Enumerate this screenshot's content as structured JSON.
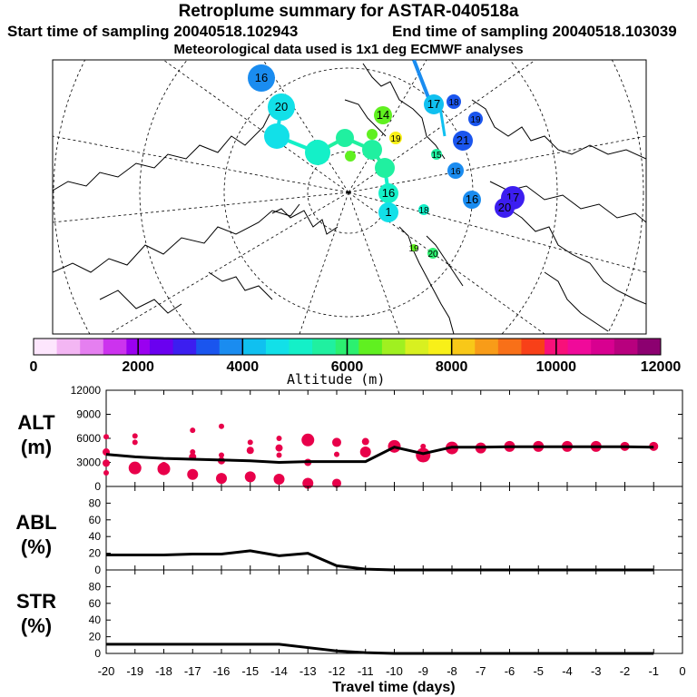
{
  "header": {
    "title": "Retroplume summary for ASTAR-040518a",
    "start_label": "Start time of sampling 20040518.102943",
    "end_label": "End time of sampling 20040518.103039",
    "met_label": "Meteorological data used is 1x1 deg ECMWF analyses"
  },
  "colors": {
    "plume_marker": "#e8004a",
    "line": "#000000"
  },
  "map": {
    "projection": "north polar stereographic",
    "cluster_labels": [
      {
        "text": "16",
        "value": 16
      },
      {
        "text": "17",
        "value": 17
      },
      {
        "text": "18",
        "value": 18
      },
      {
        "text": "19",
        "value": 19
      },
      {
        "text": "20",
        "value": 20
      },
      {
        "text": "14",
        "value": 14
      },
      {
        "text": "21",
        "value": 21
      },
      {
        "text": "19",
        "value": 19
      },
      {
        "text": "16",
        "value": 16
      },
      {
        "text": "15",
        "value": 15
      },
      {
        "text": "16",
        "value": 16
      },
      {
        "text": "17",
        "value": 17
      },
      {
        "text": "20",
        "value": 20
      },
      {
        "text": "16",
        "value": 16
      },
      {
        "text": "18",
        "value": 18
      },
      {
        "text": "1",
        "value": 1
      },
      {
        "text": "19",
        "value": 19
      },
      {
        "text": "20",
        "value": 20
      }
    ]
  },
  "colorbar": {
    "label": "Altitude (m)",
    "ticks": [
      "0",
      "2000",
      "4000",
      "6000",
      "8000",
      "10000",
      "12000"
    ],
    "colors": [
      "#fde6fd",
      "#f3b6f3",
      "#e57ff0",
      "#cc33ee",
      "#9a00f0",
      "#6a00f0",
      "#3c1ef0",
      "#1a55ee",
      "#1a8cf0",
      "#10c0f0",
      "#12e0e8",
      "#14f0c8",
      "#20f0a0",
      "#2cf070",
      "#60f020",
      "#a0f020",
      "#d8f020",
      "#f8f018",
      "#f8c818",
      "#f89c18",
      "#f87018",
      "#f84018",
      "#f8107a",
      "#f00a9a",
      "#d80090",
      "#b8007e",
      "#8c0070"
    ]
  },
  "chart_data": [
    {
      "type": "line",
      "name": "ALT",
      "ylabel": "ALT\n(m)",
      "ylabel_line1": "ALT",
      "ylabel_line2": "(m)",
      "ylim": [
        0,
        12000
      ],
      "yticks": [
        "0",
        "3000",
        "6000",
        "9000",
        "12000"
      ],
      "ytick_values": [
        0,
        3000,
        6000,
        9000,
        12000
      ],
      "x": [
        -20,
        -19,
        -18,
        -17,
        -16,
        -15,
        -14,
        -13,
        -12,
        -11,
        -10,
        -9,
        -8,
        -7,
        -6,
        -5,
        -4,
        -3,
        -2,
        -1
      ],
      "values": [
        4000,
        3700,
        3500,
        3400,
        3300,
        3200,
        3000,
        3100,
        3100,
        3100,
        4900,
        4100,
        4900,
        4900,
        4950,
        4950,
        4950,
        4950,
        4950,
        4900
      ],
      "clusters": [
        {
          "x": -20,
          "y": 6200,
          "r": 3
        },
        {
          "x": -20,
          "y": 4300,
          "r": 4
        },
        {
          "x": -20,
          "y": 2900,
          "r": 4
        },
        {
          "x": -20,
          "y": 1700,
          "r": 3
        },
        {
          "x": -19,
          "y": 6300,
          "r": 3
        },
        {
          "x": -19,
          "y": 5500,
          "r": 3
        },
        {
          "x": -19,
          "y": 2300,
          "r": 7
        },
        {
          "x": -18,
          "y": 2200,
          "r": 7
        },
        {
          "x": -18,
          "y": 2600,
          "r": 4
        },
        {
          "x": -17,
          "y": 7000,
          "r": 3
        },
        {
          "x": -17,
          "y": 4300,
          "r": 3
        },
        {
          "x": -17,
          "y": 3700,
          "r": 4
        },
        {
          "x": -17,
          "y": 1500,
          "r": 6
        },
        {
          "x": -16,
          "y": 7500,
          "r": 3
        },
        {
          "x": -16,
          "y": 3900,
          "r": 3
        },
        {
          "x": -16,
          "y": 3200,
          "r": 4
        },
        {
          "x": -16,
          "y": 1000,
          "r": 6
        },
        {
          "x": -15,
          "y": 5500,
          "r": 3
        },
        {
          "x": -15,
          "y": 4500,
          "r": 4
        },
        {
          "x": -15,
          "y": 1200,
          "r": 6
        },
        {
          "x": -14,
          "y": 6000,
          "r": 3
        },
        {
          "x": -14,
          "y": 4800,
          "r": 4
        },
        {
          "x": -14,
          "y": 3900,
          "r": 3
        },
        {
          "x": -14,
          "y": 900,
          "r": 6
        },
        {
          "x": -13,
          "y": 5800,
          "r": 7
        },
        {
          "x": -13,
          "y": 3000,
          "r": 4
        },
        {
          "x": -13,
          "y": 400,
          "r": 6
        },
        {
          "x": -12,
          "y": 5500,
          "r": 5
        },
        {
          "x": -12,
          "y": 4000,
          "r": 3
        },
        {
          "x": -12,
          "y": 400,
          "r": 5
        },
        {
          "x": -11,
          "y": 5600,
          "r": 4
        },
        {
          "x": -11,
          "y": 4300,
          "r": 6
        },
        {
          "x": -10,
          "y": 5000,
          "r": 7
        },
        {
          "x": -9,
          "y": 3900,
          "r": 8
        },
        {
          "x": -9,
          "y": 5000,
          "r": 3
        },
        {
          "x": -8,
          "y": 4800,
          "r": 7
        },
        {
          "x": -7,
          "y": 4800,
          "r": 6
        },
        {
          "x": -6,
          "y": 5000,
          "r": 6
        },
        {
          "x": -5,
          "y": 5000,
          "r": 6
        },
        {
          "x": -4,
          "y": 5000,
          "r": 6
        },
        {
          "x": -3,
          "y": 5000,
          "r": 6
        },
        {
          "x": -2,
          "y": 5000,
          "r": 5
        },
        {
          "x": -1,
          "y": 5000,
          "r": 5
        }
      ]
    },
    {
      "type": "line",
      "name": "ABL",
      "ylabel": "ABL\n(%)",
      "ylabel_line1": "ABL",
      "ylabel_line2": "(%)",
      "ylim": [
        0,
        100
      ],
      "yticks": [
        "0",
        "20",
        "40",
        "60",
        "80"
      ],
      "ytick_values": [
        0,
        20,
        40,
        60,
        80
      ],
      "x": [
        -20,
        -19,
        -18,
        -17,
        -16,
        -15,
        -14,
        -13,
        -12,
        -11,
        -10,
        -9,
        -8,
        -7,
        -6,
        -5,
        -4,
        -3,
        -2,
        -1
      ],
      "values": [
        18,
        18,
        18,
        19,
        19,
        23,
        17,
        20,
        5,
        1,
        0,
        0,
        0,
        0,
        0,
        0,
        0,
        0,
        0,
        0
      ]
    },
    {
      "type": "line",
      "name": "STR",
      "ylabel": "STR\n(%)",
      "ylabel_line1": "STR",
      "ylabel_line2": "(%)",
      "ylim": [
        0,
        100
      ],
      "yticks": [
        "0",
        "20",
        "40",
        "60",
        "80"
      ],
      "ytick_values": [
        0,
        20,
        40,
        60,
        80
      ],
      "x": [
        -20,
        -19,
        -18,
        -17,
        -16,
        -15,
        -14,
        -13,
        -12,
        -11,
        -10,
        -9,
        -8,
        -7,
        -6,
        -5,
        -4,
        -3,
        -2,
        -1
      ],
      "values": [
        11,
        11,
        11,
        11,
        11,
        11,
        11,
        7,
        3,
        1,
        0,
        0,
        0,
        0,
        0,
        0,
        0,
        0,
        0,
        0
      ],
      "xlabel": "Travel time (days)",
      "xlim": [
        -20,
        0
      ],
      "xticks": [
        "-20",
        "-19",
        "-18",
        "-17",
        "-16",
        "-15",
        "-14",
        "-13",
        "-12",
        "-11",
        "-10",
        "-9",
        "-8",
        "-7",
        "-6",
        "-5",
        "-4",
        "-3",
        "-2",
        "-1",
        "0"
      ],
      "xtick_values": [
        -20,
        -19,
        -18,
        -17,
        -16,
        -15,
        -14,
        -13,
        -12,
        -11,
        -10,
        -9,
        -8,
        -7,
        -6,
        -5,
        -4,
        -3,
        -2,
        -1,
        0
      ]
    }
  ]
}
